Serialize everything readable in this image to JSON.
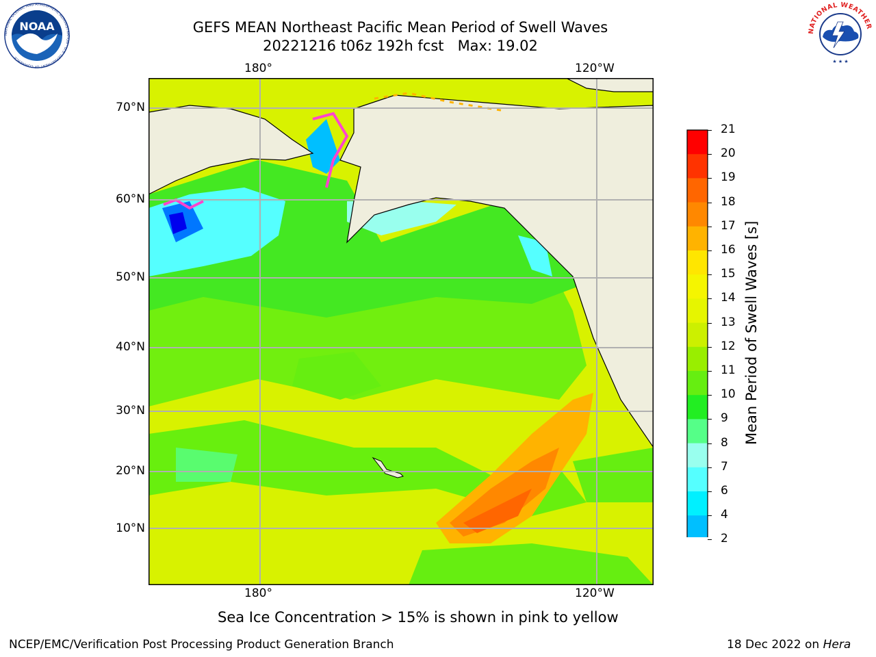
{
  "title": {
    "line1": "GEFS MEAN Northeast Pacific Mean Period of Swell Waves",
    "line2": "20221216 t06z 192h fcst   Max: 19.02"
  },
  "map": {
    "lon_labels_top": [
      "180°",
      "120°W"
    ],
    "lon_labels_bottom": [
      "180°",
      "120°W"
    ],
    "lat_labels": [
      "70°N",
      "60°N",
      "50°N",
      "40°N",
      "30°N",
      "20°N",
      "10°N"
    ]
  },
  "colorbar": {
    "label": "Mean Period of Swell Waves [s]",
    "ticks": [
      "21",
      "20",
      "19",
      "18",
      "17",
      "16",
      "15",
      "14",
      "13",
      "12",
      "11",
      "10",
      "9",
      "8",
      "7",
      "6",
      "4",
      "2"
    ],
    "colors": [
      "#ff0000",
      "#ff3300",
      "#ff6600",
      "#ff8800",
      "#ffb300",
      "#ffe600",
      "#f5f500",
      "#e6f500",
      "#ccf000",
      "#99ee00",
      "#66ee11",
      "#22ee22",
      "#55ff88",
      "#99ffee",
      "#55ffff",
      "#00f0ff",
      "#00bfff",
      "#0077ff"
    ],
    "extend_color": "#0000ee"
  },
  "note": "Sea Ice Concentration > 15% is shown in pink to yellow",
  "footer": {
    "left": "NCEP/EMC/Verification Post Processing Product Generation Branch",
    "right_date": "18 Dec 2022 on ",
    "right_host": "Hera"
  },
  "logos": {
    "noaa_text": "NOAA",
    "noaa_ring": "NATIONAL OCEANIC AND ATMOSPHERIC ADMINISTRATION · U.S. DEPARTMENT OF COMMERCE",
    "nws_ring": "NATIONAL WEATHER SERVICE"
  }
}
